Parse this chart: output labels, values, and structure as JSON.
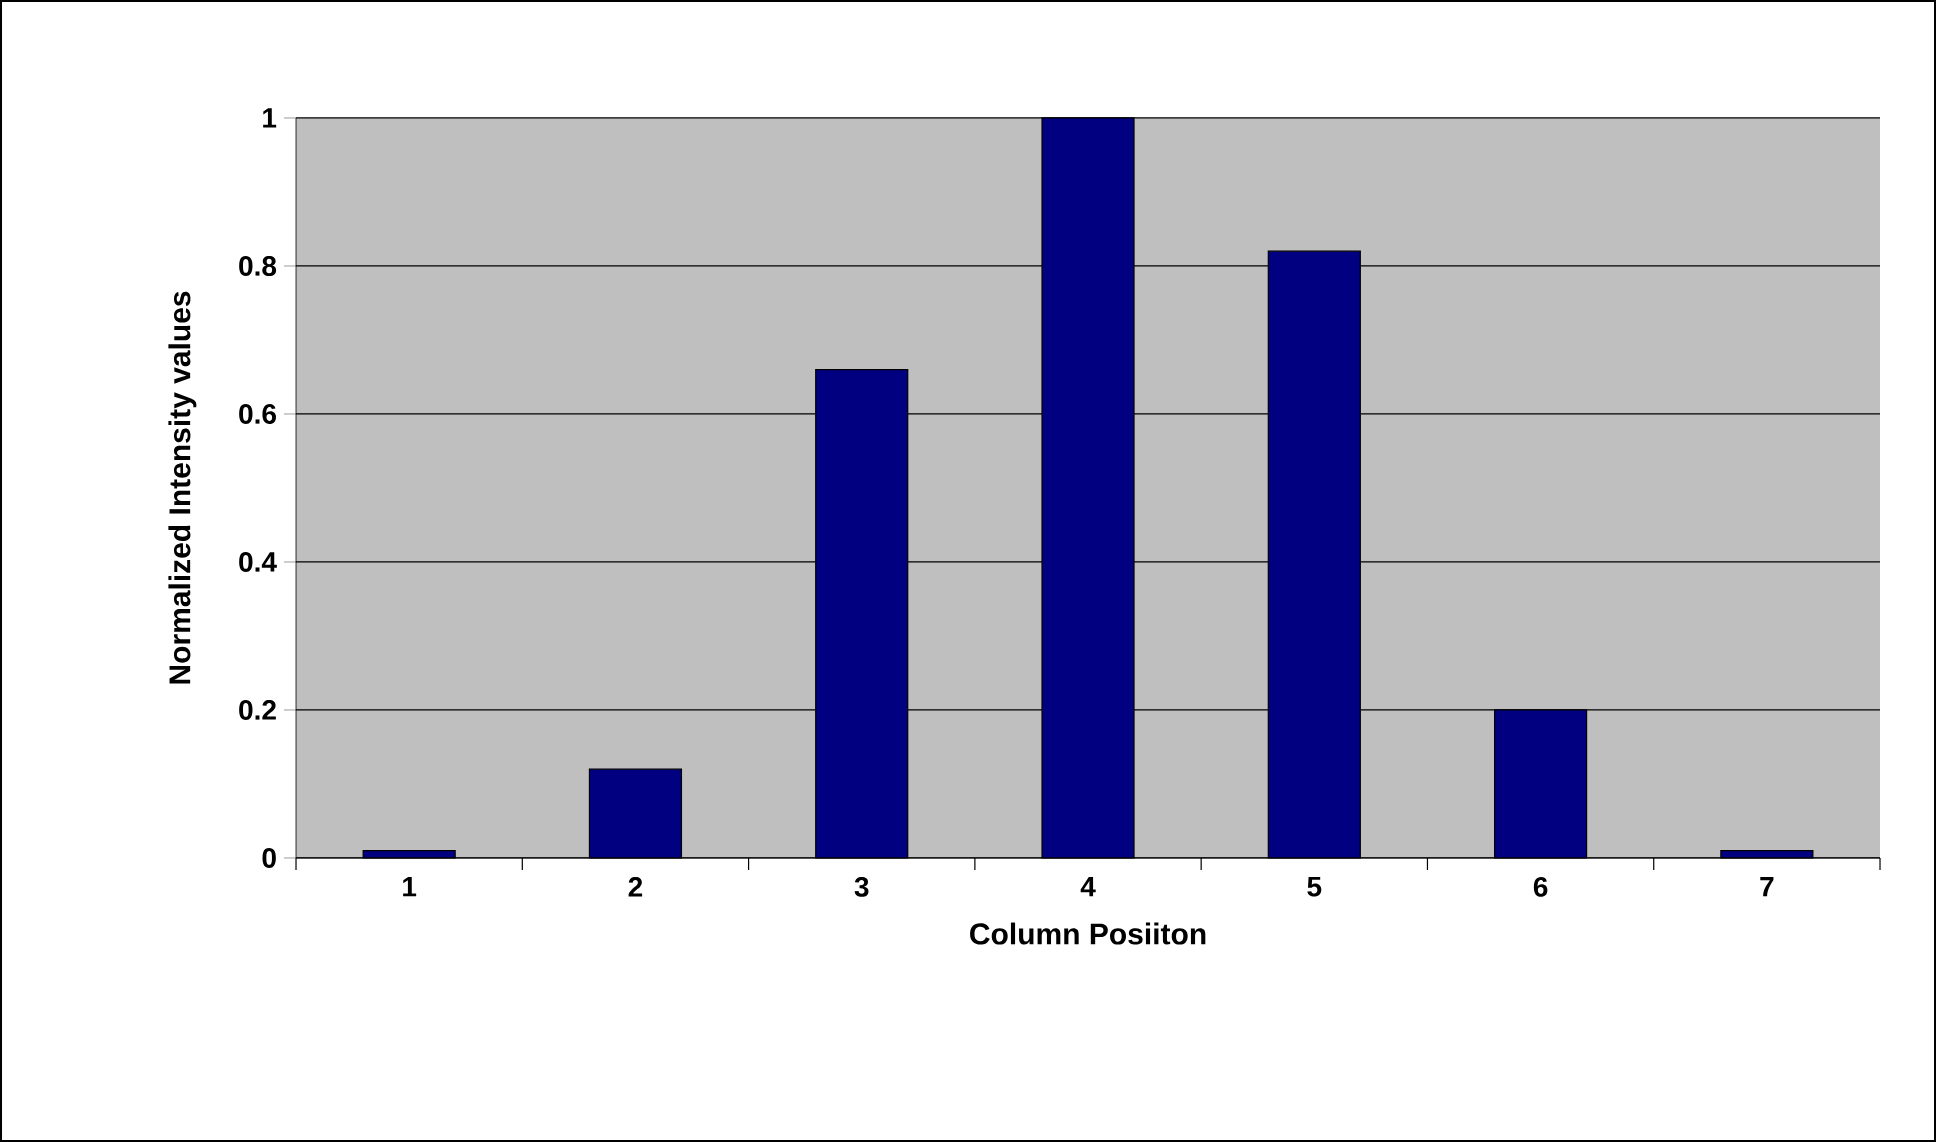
{
  "chart_data": {
    "type": "bar",
    "xlabel": "Column Posiiton",
    "ylabel": "Normalized Intensity values",
    "categories": [
      "1",
      "2",
      "3",
      "4",
      "5",
      "6",
      "7"
    ],
    "values": [
      0.01,
      0.12,
      0.66,
      1,
      0.82,
      0.2,
      0.01
    ],
    "color": "#000080",
    "ylim": [
      0,
      1
    ],
    "yticks": [
      0,
      0.2,
      0.4,
      0.6,
      0.8,
      1
    ],
    "grid": "y"
  }
}
